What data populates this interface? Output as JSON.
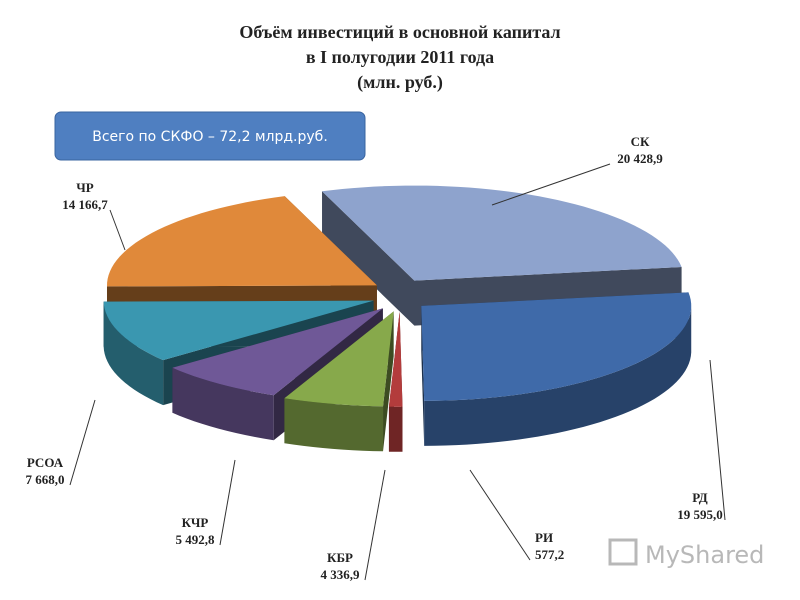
{
  "chart_data": {
    "type": "pie",
    "title": [
      "Объём инвестиций в основной капитал",
      "в I полугодии 2011 года",
      "(млн. руб.)"
    ],
    "annotation": "Всего по СКФО – 72,2 млрд.руб.",
    "categories": [
      "СК",
      "РД",
      "РИ",
      "КБР",
      "КЧР",
      "РСОА",
      "ЧР"
    ],
    "values": [
      20428.9,
      19595.0,
      577.2,
      4336.9,
      5492.8,
      7668.0,
      14166.7
    ],
    "value_labels": [
      "20 428,9",
      "19 595,0",
      "577,2",
      "4 336,9",
      "5 492,8",
      "7 668,0",
      "14 166,7"
    ],
    "colors": [
      "#8ea3cd",
      "#3f6aa9",
      "#b33c3c",
      "#87a94b",
      "#6f5897",
      "#3a97b0",
      "#e0893a"
    ]
  },
  "watermark": "MyShared"
}
